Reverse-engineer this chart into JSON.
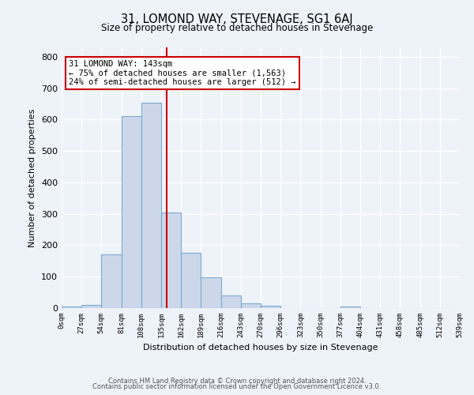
{
  "title": "31, LOMOND WAY, STEVENAGE, SG1 6AJ",
  "subtitle": "Size of property relative to detached houses in Stevenage",
  "xlabel": "Distribution of detached houses by size in Stevenage",
  "ylabel": "Number of detached properties",
  "bin_edges": [
    0,
    27,
    54,
    81,
    108,
    135,
    162,
    189,
    216,
    243,
    270,
    297,
    324,
    351,
    378,
    405,
    432,
    459,
    486,
    513,
    540
  ],
  "xtick_labels": [
    "0sqm",
    "27sqm",
    "54sqm",
    "81sqm",
    "108sqm",
    "135sqm",
    "162sqm",
    "189sqm",
    "216sqm",
    "243sqm",
    "270sqm",
    "296sqm",
    "323sqm",
    "350sqm",
    "377sqm",
    "404sqm",
    "431sqm",
    "458sqm",
    "485sqm",
    "512sqm",
    "539sqm"
  ],
  "bin_counts": [
    5,
    10,
    170,
    610,
    655,
    305,
    175,
    97,
    40,
    15,
    8,
    0,
    0,
    0,
    5,
    0,
    0,
    0,
    0,
    0
  ],
  "property_size": 143,
  "bar_facecolor": "#ccd8ea",
  "bar_edgecolor": "#7aaad0",
  "vline_color": "#cc0000",
  "annotation_text": "31 LOMOND WAY: 143sqm\n← 75% of detached houses are smaller (1,563)\n24% of semi-detached houses are larger (512) →",
  "annotation_box_edgecolor": "#cc0000",
  "footer_line1": "Contains HM Land Registry data © Crown copyright and database right 2024.",
  "footer_line2": "Contains public sector information licensed under the Open Government Licence v3.0.",
  "ylim": [
    0,
    830
  ],
  "yticks": [
    0,
    100,
    200,
    300,
    400,
    500,
    600,
    700,
    800
  ],
  "background_color": "#eef2f9",
  "grid_color": "#ffffff"
}
